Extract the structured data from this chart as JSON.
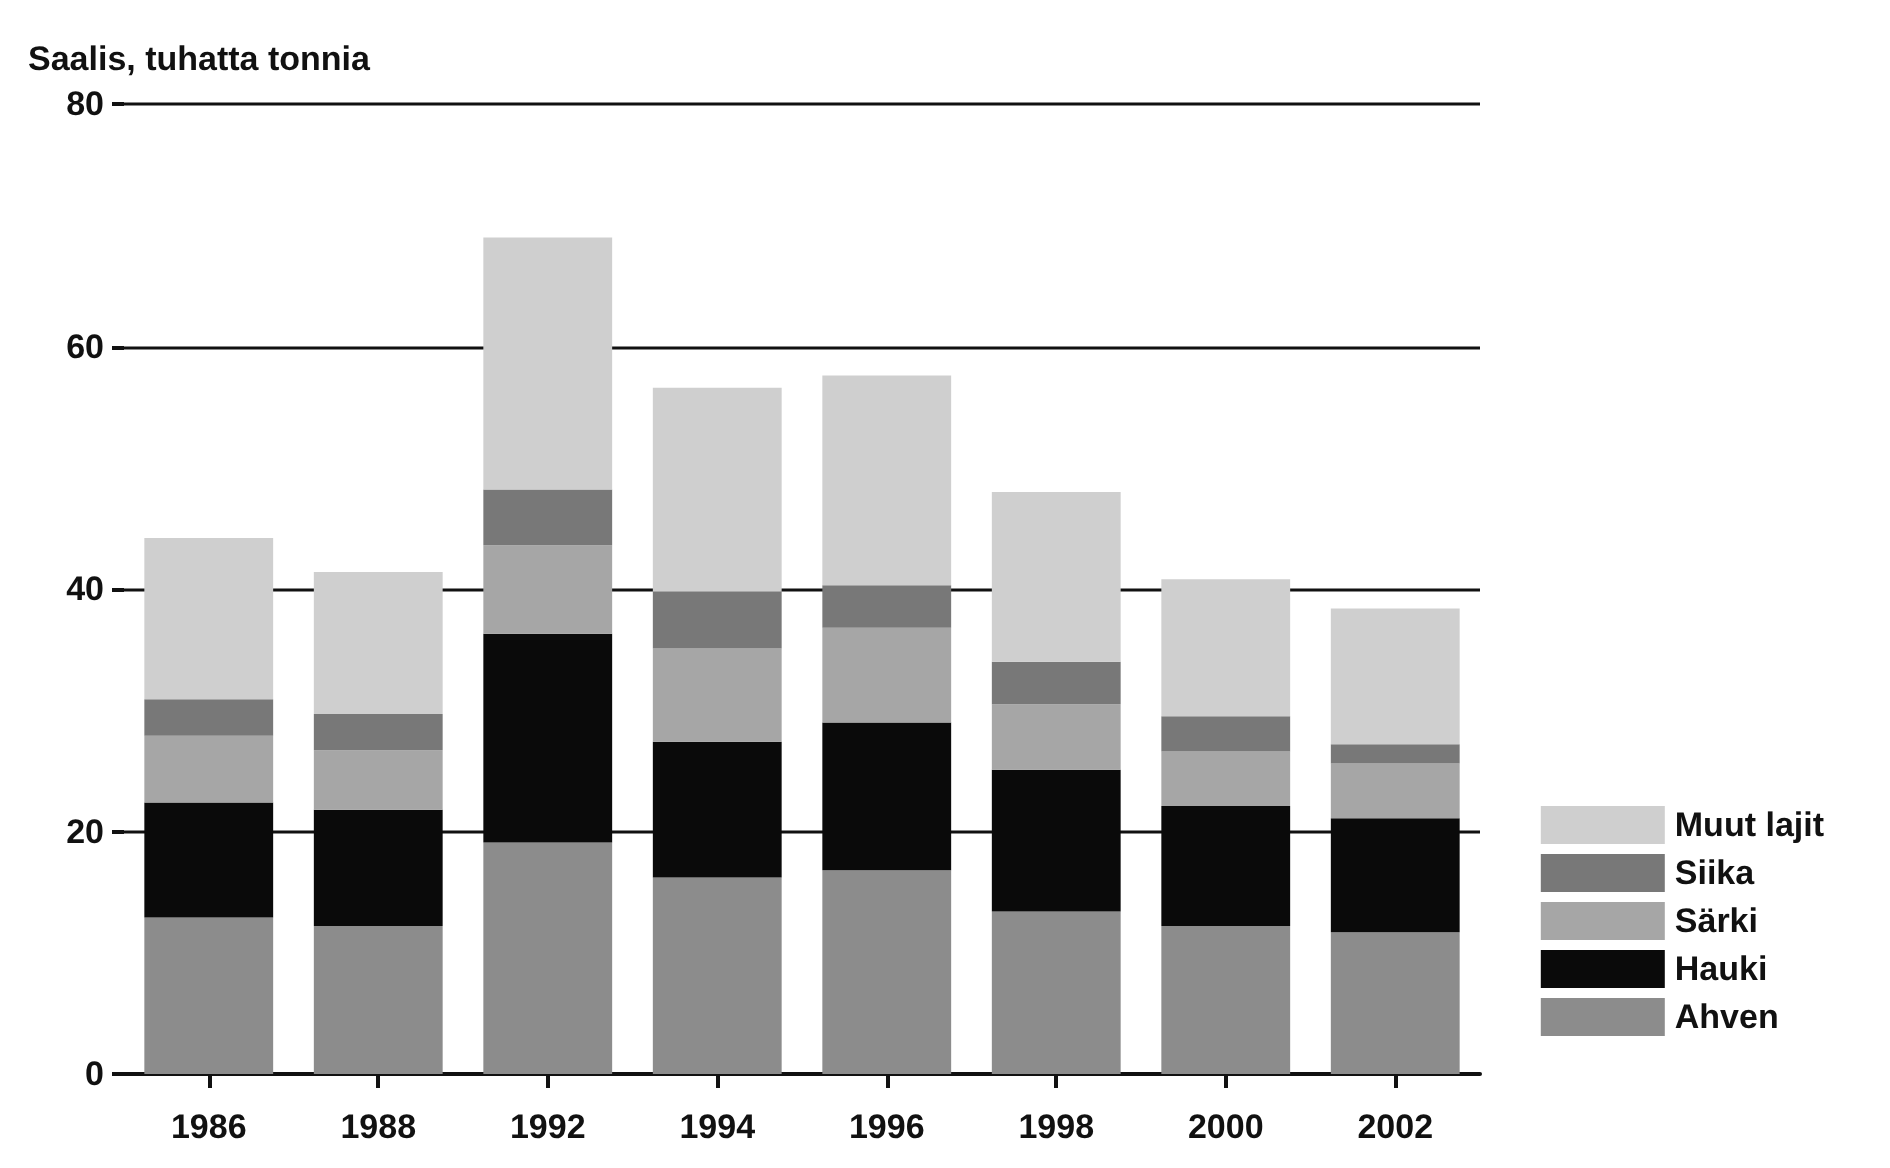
{
  "chart_data": {
    "type": "bar",
    "ylabel": "Saalis, tuhatta tonnia",
    "categories": [
      "1986",
      "1988",
      "1992",
      "1994",
      "1996",
      "1998",
      "2000",
      "2002"
    ],
    "stacked": true,
    "ylim": [
      0,
      80
    ],
    "yticks": [
      0,
      20,
      40,
      60,
      80
    ],
    "grid": "y",
    "legend": "right",
    "series": [
      {
        "name": "Ahven",
        "color": "#8c8c8c",
        "values": [
          12.9,
          12.2,
          19.1,
          16.2,
          16.8,
          13.4,
          12.2,
          11.7
        ]
      },
      {
        "name": "Hauki",
        "color": "#0a0a0a",
        "values": [
          9.5,
          9.6,
          17.2,
          11.2,
          12.2,
          11.7,
          9.9,
          9.4
        ]
      },
      {
        "name": "Särki",
        "color": "#a6a6a6",
        "values": [
          5.5,
          4.9,
          7.3,
          7.7,
          7.8,
          5.4,
          4.5,
          4.5
        ]
      },
      {
        "name": "Siika",
        "color": "#787878",
        "values": [
          3.0,
          3.0,
          4.6,
          4.7,
          3.5,
          3.5,
          2.9,
          1.6
        ]
      },
      {
        "name": "Muut lajit",
        "color": "#cfcfcf",
        "values": [
          13.3,
          11.7,
          20.8,
          16.8,
          17.3,
          14.0,
          11.3,
          11.2
        ]
      }
    ]
  }
}
